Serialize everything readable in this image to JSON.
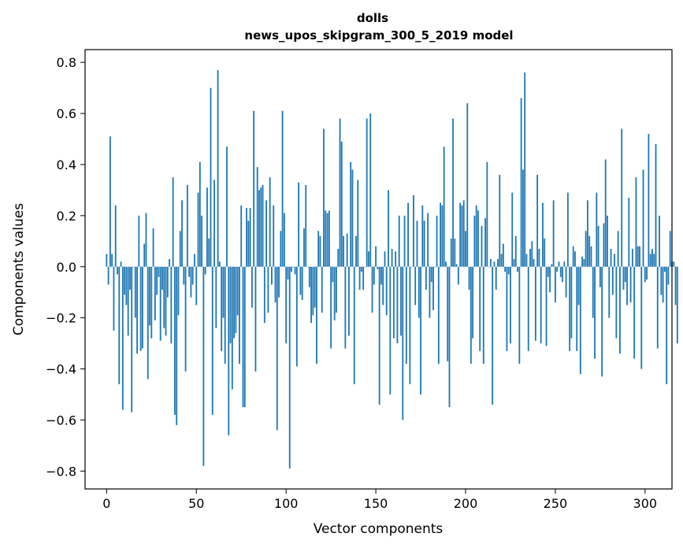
{
  "chart_data": {
    "type": "bar",
    "title": "dolls",
    "subtitle": "news_upos_skipgram_300_5_2019 model",
    "xlabel": "Vector components",
    "ylabel": "Components values",
    "xlim": [
      -12,
      315
    ],
    "ylim": [
      -0.87,
      0.85
    ],
    "xticks": [
      0,
      50,
      100,
      150,
      200,
      250,
      300
    ],
    "yticks": [
      -0.8,
      -0.6,
      -0.4,
      -0.2,
      0.0,
      0.2,
      0.4,
      0.6,
      0.8
    ],
    "ytick_labels": [
      "−0.8",
      "−0.6",
      "−0.4",
      "−0.2",
      "0.0",
      "0.2",
      "0.4",
      "0.6",
      "0.8"
    ],
    "xtick_labels": [
      "0",
      "50",
      "100",
      "150",
      "200",
      "250",
      "300"
    ],
    "bar_color": "#1f77b4",
    "values": [
      0.05,
      -0.07,
      0.51,
      0.05,
      -0.25,
      0.24,
      -0.03,
      -0.46,
      0.02,
      -0.56,
      -0.11,
      -0.15,
      -0.27,
      -0.09,
      -0.57,
      0.0,
      -0.2,
      -0.34,
      0.2,
      -0.33,
      -0.32,
      0.09,
      0.21,
      -0.44,
      -0.23,
      -0.28,
      0.15,
      -0.21,
      -0.11,
      -0.04,
      -0.29,
      -0.09,
      -0.24,
      -0.27,
      -0.12,
      0.03,
      -0.3,
      0.35,
      -0.58,
      -0.62,
      -0.19,
      0.14,
      0.26,
      -0.07,
      -0.41,
      0.32,
      -0.04,
      -0.12,
      -0.07,
      0.05,
      -0.15,
      0.29,
      0.41,
      0.2,
      -0.78,
      -0.03,
      0.31,
      0.11,
      0.7,
      -0.58,
      0.34,
      -0.24,
      0.77,
      0.02,
      -0.33,
      -0.2,
      -0.38,
      0.47,
      -0.66,
      -0.3,
      -0.48,
      -0.28,
      -0.26,
      -0.19,
      -0.38,
      0.24,
      -0.55,
      -0.55,
      0.23,
      0.18,
      0.23,
      -0.16,
      0.61,
      -0.41,
      0.39,
      0.3,
      0.31,
      0.32,
      -0.22,
      0.26,
      -0.18,
      0.35,
      -0.07,
      0.24,
      -0.14,
      -0.64,
      -0.12,
      0.14,
      0.61,
      0.21,
      -0.3,
      -0.05,
      -0.79,
      -0.02,
      0.0,
      -0.03,
      -0.39,
      0.33,
      -0.11,
      -0.13,
      0.15,
      0.32,
      0.0,
      -0.08,
      -0.22,
      -0.19,
      -0.16,
      -0.38,
      0.14,
      0.12,
      -0.18,
      0.54,
      0.22,
      0.21,
      0.22,
      -0.32,
      -0.06,
      -0.21,
      -0.18,
      0.07,
      0.58,
      0.49,
      0.12,
      -0.32,
      0.13,
      -0.27,
      0.41,
      0.38,
      -0.46,
      0.12,
      0.34,
      -0.09,
      -0.02,
      -0.09,
      0.0,
      0.58,
      0.06,
      0.6,
      -0.18,
      -0.07,
      0.08,
      -0.01,
      -0.54,
      -0.07,
      -0.15,
      0.06,
      -0.19,
      0.3,
      -0.5,
      0.07,
      -0.28,
      0.06,
      -0.3,
      0.2,
      -0.27,
      -0.6,
      0.2,
      -0.38,
      0.25,
      -0.46,
      0.0,
      0.28,
      -0.15,
      0.18,
      -0.2,
      -0.5,
      0.24,
      0.18,
      -0.09,
      0.21,
      -0.2,
      -0.06,
      -0.17,
      0.0,
      0.2,
      -0.38,
      0.25,
      0.24,
      0.47,
      0.02,
      -0.37,
      -0.55,
      0.11,
      0.58,
      0.11,
      0.01,
      -0.07,
      0.25,
      0.24,
      0.26,
      0.14,
      0.64,
      -0.09,
      -0.38,
      -0.28,
      0.2,
      0.24,
      0.22,
      -0.33,
      0.16,
      -0.38,
      0.19,
      0.41,
      0.0,
      0.03,
      -0.54,
      0.02,
      -0.09,
      0.03,
      0.36,
      0.05,
      0.09,
      -0.02,
      -0.33,
      -0.03,
      -0.3,
      0.29,
      0.03,
      0.12,
      -0.02,
      -0.38,
      0.66,
      0.38,
      0.76,
      0.05,
      -0.33,
      0.07,
      0.1,
      0.03,
      -0.29,
      0.36,
      0.07,
      -0.3,
      0.25,
      0.11,
      -0.31,
      -0.04,
      -0.1,
      0.01,
      0.26,
      -0.14,
      -0.02,
      0.02,
      -0.04,
      -0.06,
      0.02,
      -0.12,
      0.29,
      -0.33,
      -0.28,
      0.08,
      0.06,
      -0.33,
      -0.15,
      -0.42,
      0.04,
      0.03,
      0.14,
      0.26,
      0.12,
      0.08,
      -0.2,
      -0.36,
      0.29,
      0.16,
      -0.08,
      -0.43,
      0.17,
      0.42,
      0.2,
      -0.2,
      0.07,
      -0.11,
      0.05,
      -0.28,
      0.14,
      -0.34,
      0.54,
      -0.09,
      -0.06,
      -0.15,
      0.27,
      -0.14,
      0.07,
      -0.36,
      0.35,
      0.08,
      0.08,
      -0.4,
      0.38,
      -0.06,
      -0.05,
      0.52,
      0.05,
      0.07,
      0.05,
      0.48,
      -0.32,
      0.2,
      -0.11,
      -0.14,
      -0.02,
      -0.46,
      -0.07,
      0.14,
      0.02,
      0.02,
      -0.15,
      -0.3
    ]
  }
}
